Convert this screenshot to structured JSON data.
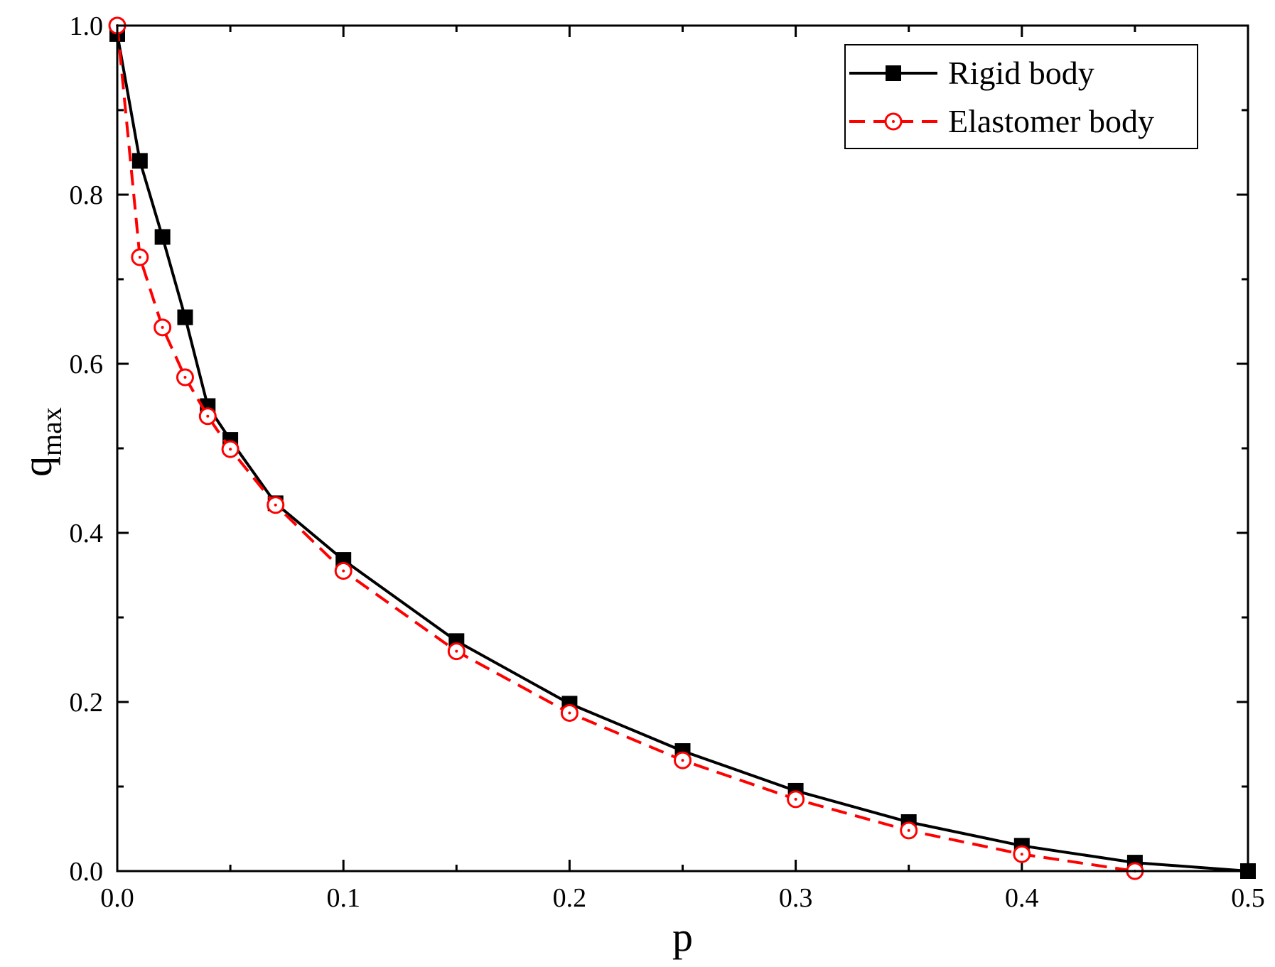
{
  "chart_data": {
    "type": "line",
    "xlabel": "p",
    "ylabel": {
      "main": "q",
      "sub": "max"
    },
    "xlim": [
      0.0,
      0.5
    ],
    "ylim": [
      0.0,
      1.0
    ],
    "x_ticks": [
      "0.0",
      "0.1",
      "0.2",
      "0.3",
      "0.4",
      "0.5"
    ],
    "y_ticks": [
      "0.0",
      "0.2",
      "0.4",
      "0.6",
      "0.8",
      "1.0"
    ],
    "grid": false,
    "legend_position": "top-right",
    "series": [
      {
        "name": "Rigid body",
        "color": "#000000",
        "line": "solid",
        "marker": "filled-square",
        "x": [
          0.0,
          0.01,
          0.02,
          0.03,
          0.04,
          0.05,
          0.07,
          0.1,
          0.15,
          0.2,
          0.25,
          0.3,
          0.35,
          0.4,
          0.45,
          0.5
        ],
        "y": [
          0.99,
          0.84,
          0.75,
          0.655,
          0.55,
          0.51,
          0.435,
          0.368,
          0.272,
          0.198,
          0.142,
          0.095,
          0.058,
          0.03,
          0.01,
          0.0
        ]
      },
      {
        "name": "Elastomer body",
        "color": "#ff0000",
        "line": "dashed",
        "marker": "open-circle-dot",
        "x": [
          0.0,
          0.01,
          0.02,
          0.03,
          0.04,
          0.05,
          0.07,
          0.1,
          0.15,
          0.2,
          0.25,
          0.3,
          0.35,
          0.4,
          0.45
        ],
        "y": [
          1.0,
          0.726,
          0.643,
          0.584,
          0.538,
          0.499,
          0.433,
          0.355,
          0.26,
          0.187,
          0.131,
          0.085,
          0.048,
          0.02,
          0.0
        ]
      }
    ]
  }
}
